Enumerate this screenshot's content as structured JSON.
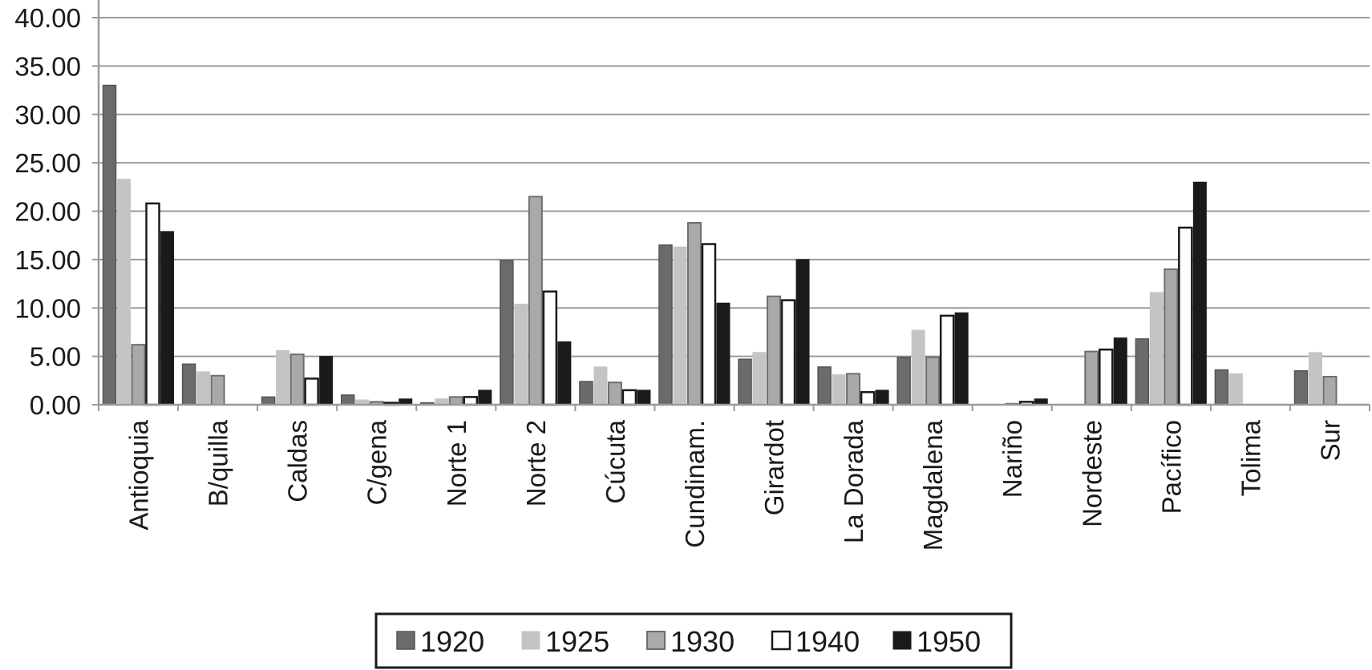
{
  "chart_data": {
    "type": "bar",
    "title": "",
    "xlabel": "",
    "ylabel": "",
    "ylim": [
      0,
      40
    ],
    "yticks": [
      "0.00",
      "5.00",
      "10.00",
      "15.00",
      "20.00",
      "25.00",
      "30.00",
      "35.00",
      "40.00"
    ],
    "grid": true,
    "legend_position": "bottom",
    "categories": [
      "Antioquia",
      "B/quilla",
      "Caldas",
      "C/gena",
      "Norte 1",
      "Norte 2",
      "Cúcuta",
      "Cundinam.",
      "Girardot",
      "La Dorada",
      "Magdalena",
      "Nariño",
      "Nordeste",
      "Pacífico",
      "Tolima",
      "Sur"
    ],
    "series": [
      {
        "name": "1920",
        "color": "#6b6b6b",
        "values": [
          33.0,
          4.2,
          0.8,
          1.0,
          0.2,
          14.9,
          2.4,
          16.5,
          4.7,
          3.9,
          4.9,
          0.0,
          0.0,
          6.8,
          3.6,
          3.5
        ]
      },
      {
        "name": "1925",
        "color": "#c4c4c4",
        "values": [
          23.3,
          3.4,
          5.6,
          0.5,
          0.6,
          10.4,
          3.9,
          16.3,
          5.4,
          3.1,
          7.7,
          0.0,
          0.0,
          11.6,
          3.2,
          5.4
        ]
      },
      {
        "name": "1930",
        "color": "#a9a9a9",
        "values": [
          6.2,
          3.0,
          5.2,
          0.3,
          0.8,
          21.5,
          2.3,
          18.8,
          11.2,
          3.2,
          4.9,
          0.1,
          5.5,
          14.0,
          0.0,
          2.9
        ]
      },
      {
        "name": "1940",
        "color": "#ffffff",
        "values": [
          20.8,
          0.0,
          2.7,
          0.2,
          0.8,
          11.7,
          1.5,
          16.6,
          10.8,
          1.3,
          9.2,
          0.3,
          5.7,
          18.3,
          0.0,
          0.0
        ]
      },
      {
        "name": "1950",
        "color": "#1a1a1a",
        "values": [
          17.9,
          0.0,
          5.0,
          0.6,
          1.5,
          6.5,
          1.5,
          10.5,
          15.0,
          1.5,
          9.5,
          0.6,
          6.9,
          23.0,
          0.0,
          0.0
        ]
      }
    ]
  }
}
